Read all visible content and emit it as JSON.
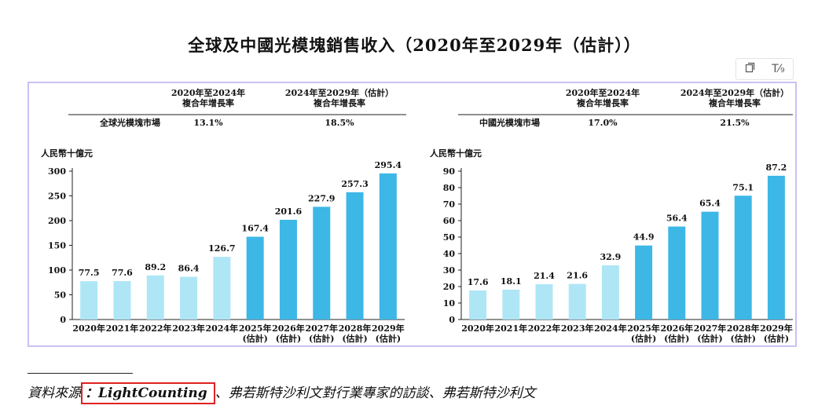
{
  "title": "全球及中國光模塊銷售收入（2020年至2029年（估計））",
  "toolbar": {
    "icons": [
      "copy-icon",
      "text-format-icon"
    ],
    "format_label": "T⁄₉"
  },
  "source": {
    "prefix": "資料來源",
    "highlight": "：LightCounting",
    "rest": "、弗若斯特沙利文對行業專家的訪談、弗若斯特沙利文"
  },
  "colors": {
    "historical": "#aee6f6",
    "forecast": "#3db7e6",
    "frame": "#c7c3f3",
    "source_box": "#e02020"
  },
  "chart_data": [
    {
      "type": "bar",
      "cagr_headers": [
        "2020年至2024年\n複合年增長率",
        "2024年至2029年（估計）\n複合年增長率"
      ],
      "market_label": "全球光模塊市場",
      "cagr_values": [
        "13.1%",
        "18.5%"
      ],
      "ylabel": "人民幣十億元",
      "ylim": [
        0,
        300
      ],
      "yticks": [
        0,
        50,
        100,
        150,
        200,
        250,
        300
      ],
      "categories": [
        "2020年",
        "2021年",
        "2022年",
        "2023年",
        "2024年",
        "2025年\n(估計)",
        "2026年\n(估計)",
        "2027年\n(估計)",
        "2028年\n(估計)",
        "2029年\n(估計)"
      ],
      "values": [
        77.5,
        77.6,
        89.2,
        86.4,
        126.7,
        167.4,
        201.6,
        227.9,
        257.3,
        295.4
      ],
      "value_labels": [
        "77.5",
        "77.6",
        "89.2",
        "86.4",
        "126.7",
        "167.4",
        "201.6",
        "227.9",
        "257.3",
        "295.4"
      ],
      "forecast_from_index": 5
    },
    {
      "type": "bar",
      "cagr_headers": [
        "2020年至2024年\n複合年增長率",
        "2024年至2029年（估計）\n複合年增長率"
      ],
      "market_label": "中國光模塊市場",
      "cagr_values": [
        "17.0%",
        "21.5%"
      ],
      "ylabel": "人民幣十億元",
      "ylim": [
        0,
        90
      ],
      "yticks": [
        0,
        10,
        20,
        30,
        40,
        50,
        60,
        70,
        80,
        90
      ],
      "categories": [
        "2020年",
        "2021年",
        "2022年",
        "2023年",
        "2024年",
        "2025年\n(估計)",
        "2026年\n(估計)",
        "2027年\n(估計)",
        "2028年\n(估計)",
        "2029年\n(估計)"
      ],
      "values": [
        17.6,
        18.1,
        21.4,
        21.6,
        32.9,
        44.9,
        56.4,
        65.4,
        75.1,
        87.2
      ],
      "value_labels": [
        "17.6",
        "18.1",
        "21.4",
        "21.6",
        "32.9",
        "44.9",
        "56.4",
        "65.4",
        "75.1",
        "87.2"
      ],
      "forecast_from_index": 5
    }
  ]
}
